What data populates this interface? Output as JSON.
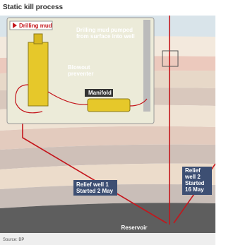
{
  "header": {
    "title": "Static kill process"
  },
  "inset": {
    "legend": "Drilling mud",
    "callout": [
      "Drilling mud pumped",
      "from surface into well"
    ],
    "bop": [
      "Blowout",
      "preventer"
    ],
    "manifold": "Manifold"
  },
  "relief_well_1": [
    "Relief well 1",
    "Started 2 May"
  ],
  "relief_well_2": [
    "Relief",
    "well 2",
    "Started",
    "16 May"
  ],
  "reservoir": "Reservoir",
  "source": "Source: BP"
}
